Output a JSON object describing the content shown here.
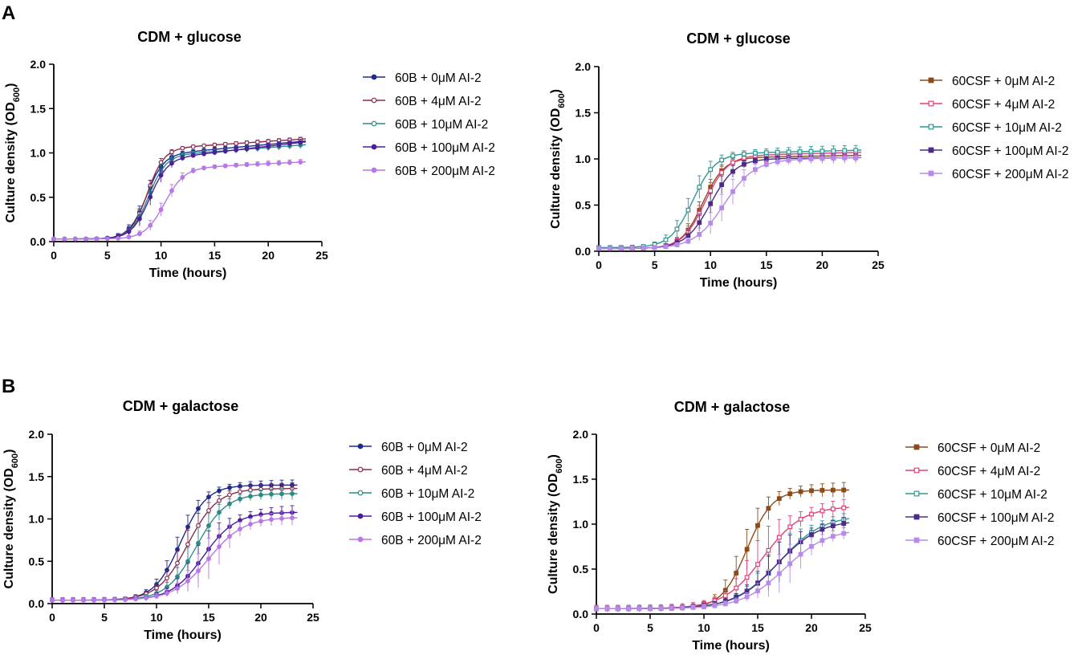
{
  "figure": {
    "panel_letters": [
      "A",
      "B"
    ],
    "colors": {
      "60B + 0μM AI-2": "#1f2a8c",
      "60B + 4μM AI-2": "#8a2b4e",
      "60B + 10μM AI-2": "#2b8a86",
      "60B + 100μM AI-2": "#4b1f9a",
      "60B + 200μM AI-2": "#b777e8",
      "60CSF + 0μM AI-2": "#8b4a1a",
      "60CSF + 4μM AI-2": "#e0407a",
      "60CSF + 10μM AI-2": "#2b9a92",
      "60CSF + 100μM AI-2": "#4b2a8a",
      "60CSF + 200μM AI-2": "#b78ae8"
    }
  },
  "chart_data": [
    {
      "id": "A-left",
      "type": "line",
      "title": "CDM + glucose",
      "xlabel": "Time (hours)",
      "ylabel": "Culture density (OD",
      "ylabel_sub": "600",
      "ylabel_end": ")",
      "xlim": [
        0,
        25
      ],
      "ylim": [
        0,
        2.0
      ],
      "xticks": [
        "0",
        "5",
        "10",
        "15",
        "20",
        "25"
      ],
      "yticks": [
        "0.0",
        "0.5",
        "1.0",
        "1.5",
        "2.0"
      ],
      "legend": "right",
      "marker": "circle",
      "series": [
        {
          "name": "60B + 0μM AI-2",
          "color": "#1f2a8c",
          "lag": 0.03,
          "max": 0.97,
          "mid": 8.6,
          "k": 1.25,
          "slope": 0.011,
          "err": 0.04
        },
        {
          "name": "60B + 4μM AI-2",
          "color": "#8a2b4e",
          "lag": 0.03,
          "max": 1.04,
          "mid": 8.7,
          "k": 1.3,
          "slope": 0.008,
          "err": 0.03
        },
        {
          "name": "60B + 10μM AI-2",
          "color": "#2b8a86",
          "lag": 0.03,
          "max": 0.96,
          "mid": 8.8,
          "k": 1.25,
          "slope": 0.009,
          "err": 0.05
        },
        {
          "name": "60B + 100μM AI-2",
          "color": "#4b1f9a",
          "lag": 0.03,
          "max": 0.92,
          "mid": 8.9,
          "k": 1.2,
          "slope": 0.014,
          "err": 0.05
        },
        {
          "name": "60B + 200μM AI-2",
          "color": "#b777e8",
          "lag": 0.03,
          "max": 0.82,
          "mid": 10.3,
          "k": 1.1,
          "slope": 0.006,
          "err": 0.04
        }
      ]
    },
    {
      "id": "A-right",
      "type": "line",
      "title": "CDM + glucose",
      "xlabel": "Time (hours)",
      "ylabel": "Culture density (OD",
      "ylabel_sub": "600",
      "ylabel_end": ")",
      "xlim": [
        0,
        25
      ],
      "ylim": [
        0,
        2.0
      ],
      "xticks": [
        "0",
        "5",
        "10",
        "15",
        "20",
        "25"
      ],
      "yticks": [
        "0.0",
        "0.5",
        "1.0",
        "1.5",
        "2.0"
      ],
      "legend": "right",
      "marker": "square",
      "series": [
        {
          "name": "60CSF + 0μM AI-2",
          "color": "#8b4a1a",
          "lag": 0.03,
          "max": 1.01,
          "mid": 9.3,
          "k": 1.05,
          "slope": 0.002,
          "err": 0.05
        },
        {
          "name": "60CSF + 4μM AI-2",
          "color": "#e0407a",
          "lag": 0.03,
          "max": 1.03,
          "mid": 9.5,
          "k": 1.0,
          "slope": 0.003,
          "err": 0.05
        },
        {
          "name": "60CSF + 10μM AI-2",
          "color": "#2b9a92",
          "lag": 0.04,
          "max": 1.05,
          "mid": 8.4,
          "k": 1.0,
          "slope": 0.003,
          "err": 0.07
        },
        {
          "name": "60CSF + 100μM AI-2",
          "color": "#4b2a8a",
          "lag": 0.03,
          "max": 1.0,
          "mid": 10.0,
          "k": 0.9,
          "slope": 0.001,
          "err": 0.06
        },
        {
          "name": "60CSF + 200μM AI-2",
          "color": "#b78ae8",
          "lag": 0.03,
          "max": 0.98,
          "mid": 11.2,
          "k": 0.75,
          "slope": 0.003,
          "err": 0.08
        }
      ]
    },
    {
      "id": "B-left",
      "type": "line",
      "title": "CDM + galactose",
      "xlabel": "Time (hours)",
      "ylabel": "Culture density (OD",
      "ylabel_sub": "600",
      "ylabel_end": ")",
      "xlim": [
        0,
        25
      ],
      "ylim": [
        0,
        2.0
      ],
      "xticks": [
        "0",
        "5",
        "10",
        "15",
        "20",
        "25"
      ],
      "yticks": [
        "0.0",
        "0.5",
        "1.0",
        "1.5",
        "2.0"
      ],
      "legend": "right",
      "marker": "circle",
      "series": [
        {
          "name": "60B + 0μM AI-2",
          "color": "#1f2a8c",
          "lag": 0.04,
          "max": 1.4,
          "mid": 12.3,
          "k": 0.8,
          "slope": 0.0,
          "err": 0.08
        },
        {
          "name": "60B + 4μM AI-2",
          "color": "#8a2b4e",
          "lag": 0.04,
          "max": 1.36,
          "mid": 13.0,
          "k": 0.7,
          "slope": 0.0,
          "err": 0.09
        },
        {
          "name": "60B + 10μM AI-2",
          "color": "#2b8a86",
          "lag": 0.04,
          "max": 1.3,
          "mid": 13.8,
          "k": 0.7,
          "slope": 0.0,
          "err": 0.1
        },
        {
          "name": "60B + 100μM AI-2",
          "color": "#4b1f9a",
          "lag": 0.04,
          "max": 1.08,
          "mid": 14.5,
          "k": 0.65,
          "slope": 0.0,
          "err": 0.12
        },
        {
          "name": "60B + 200μM AI-2",
          "color": "#b777e8",
          "lag": 0.04,
          "max": 1.02,
          "mid": 15.0,
          "k": 0.6,
          "slope": 0.0,
          "err": 0.13
        }
      ]
    },
    {
      "id": "B-right",
      "type": "line",
      "title": "CDM + galactose",
      "xlabel": "Time (hours)",
      "ylabel": "Culture density (OD",
      "ylabel_sub": "600",
      "ylabel_end": ")",
      "xlim": [
        0,
        25
      ],
      "ylim": [
        0,
        2.0
      ],
      "xticks": [
        "0",
        "5",
        "10",
        "15",
        "20",
        "25"
      ],
      "yticks": [
        "0.0",
        "0.5",
        "1.0",
        "1.5",
        "2.0"
      ],
      "legend": "right",
      "marker": "square",
      "series": [
        {
          "name": "60CSF + 0μM AI-2",
          "color": "#8b4a1a",
          "lag": 0.06,
          "max": 1.38,
          "mid": 14.0,
          "k": 0.85,
          "slope": 0.0,
          "err": 0.12
        },
        {
          "name": "60CSF + 4μM AI-2",
          "color": "#e0407a",
          "lag": 0.06,
          "max": 1.2,
          "mid": 15.5,
          "k": 0.55,
          "slope": 0.0,
          "err": 0.15
        },
        {
          "name": "60CSF + 10μM AI-2",
          "color": "#2b9a92",
          "lag": 0.06,
          "max": 1.1,
          "mid": 17.0,
          "k": 0.5,
          "slope": 0.0,
          "err": 0.12
        },
        {
          "name": "60CSF + 100μM AI-2",
          "color": "#4b2a8a",
          "lag": 0.06,
          "max": 1.05,
          "mid": 16.8,
          "k": 0.5,
          "slope": 0.0,
          "err": 0.12
        },
        {
          "name": "60CSF + 200μM AI-2",
          "color": "#b78ae8",
          "lag": 0.06,
          "max": 0.95,
          "mid": 17.5,
          "k": 0.5,
          "slope": 0.0,
          "err": 0.12
        }
      ]
    }
  ]
}
